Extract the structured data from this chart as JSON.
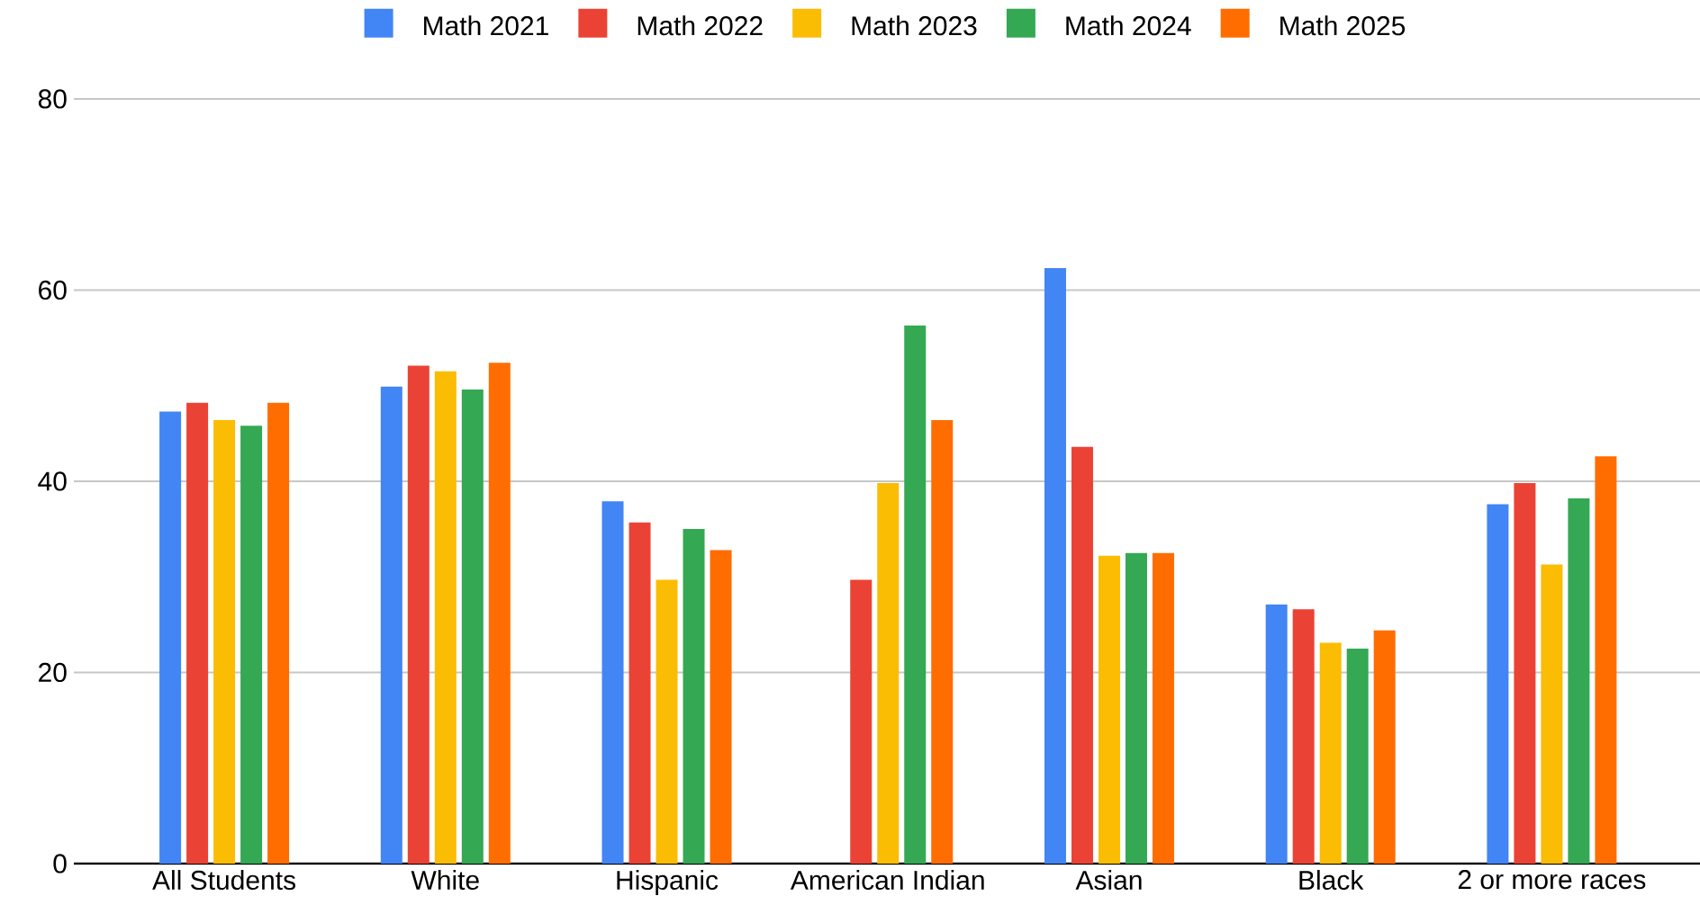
{
  "chart_data": {
    "type": "bar",
    "categories": [
      "All Students",
      "White",
      "Hispanic",
      "American Indian",
      "Asian",
      "Black",
      "2 or more races"
    ],
    "series": [
      {
        "name": "Math 2021",
        "color": "#4285f4",
        "values": [
          47.3,
          49.9,
          37.9,
          null,
          62.3,
          27.1,
          37.6
        ]
      },
      {
        "name": "Math 2022",
        "color": "#ea4335",
        "values": [
          48.2,
          52.1,
          35.7,
          29.7,
          43.6,
          26.6,
          39.8
        ]
      },
      {
        "name": "Math 2023",
        "color": "#fbbc04",
        "values": [
          46.4,
          51.5,
          29.7,
          39.8,
          32.2,
          23.1,
          31.3
        ]
      },
      {
        "name": "Math 2024",
        "color": "#34a853",
        "values": [
          45.8,
          49.6,
          35.0,
          56.3,
          32.5,
          22.5,
          38.2
        ]
      },
      {
        "name": "Math 2025",
        "color": "#ff6d01",
        "values": [
          48.2,
          52.4,
          32.8,
          46.4,
          32.5,
          24.4,
          42.6
        ]
      }
    ],
    "ylim": [
      0,
      80
    ],
    "yticks": [
      0,
      20,
      40,
      60,
      80
    ],
    "grid": "y",
    "legend": "top"
  }
}
